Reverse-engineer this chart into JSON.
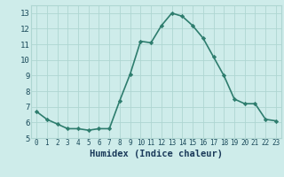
{
  "x": [
    0,
    1,
    2,
    3,
    4,
    5,
    6,
    7,
    8,
    9,
    10,
    11,
    12,
    13,
    14,
    15,
    16,
    17,
    18,
    19,
    20,
    21,
    22,
    23
  ],
  "y": [
    6.7,
    6.2,
    5.9,
    5.6,
    5.6,
    5.5,
    5.6,
    5.6,
    7.4,
    9.1,
    11.2,
    11.1,
    12.2,
    13.0,
    12.8,
    12.2,
    11.4,
    10.2,
    9.0,
    7.5,
    7.2,
    7.2,
    6.2,
    6.1
  ],
  "xlabel": "Humidex (Indice chaleur)",
  "xlim": [
    -0.5,
    23.5
  ],
  "ylim": [
    5.0,
    13.5
  ],
  "yticks": [
    5,
    6,
    7,
    8,
    9,
    10,
    11,
    12,
    13
  ],
  "xticks": [
    0,
    1,
    2,
    3,
    4,
    5,
    6,
    7,
    8,
    9,
    10,
    11,
    12,
    13,
    14,
    15,
    16,
    17,
    18,
    19,
    20,
    21,
    22,
    23
  ],
  "line_color": "#2e7d6e",
  "marker": "D",
  "marker_size": 2.2,
  "bg_color": "#ceecea",
  "grid_color": "#aed6d2",
  "tick_color": "#1a4a5a",
  "label_color": "#1a3a5a",
  "xlabel_fontsize": 7.5,
  "tick_fontsize_x": 5.5,
  "tick_fontsize_y": 6.5,
  "linewidth": 1.2
}
